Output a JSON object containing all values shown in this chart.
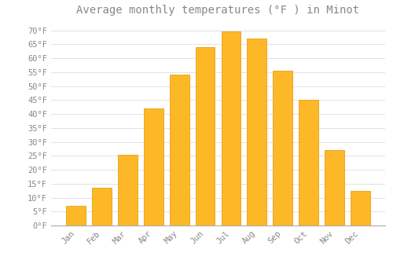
{
  "title": "Average monthly temperatures (°F ) in Minot",
  "months": [
    "Jan",
    "Feb",
    "Mar",
    "Apr",
    "May",
    "Jun",
    "Jul",
    "Aug",
    "Sep",
    "Oct",
    "Nov",
    "Dec"
  ],
  "values": [
    7,
    13.5,
    25.5,
    42,
    54,
    64,
    69.5,
    67,
    55.5,
    45,
    27,
    12.5
  ],
  "bar_color": "#FDB827",
  "bar_edge_color": "#E8A010",
  "background_color": "#FFFFFF",
  "grid_color": "#DDDDDD",
  "text_color": "#888888",
  "ylim": [
    0,
    73
  ],
  "yticks": [
    0,
    5,
    10,
    15,
    20,
    25,
    30,
    35,
    40,
    45,
    50,
    55,
    60,
    65,
    70
  ],
  "ytick_labels": [
    "0°F",
    "5°F",
    "10°F",
    "15°F",
    "20°F",
    "25°F",
    "30°F",
    "35°F",
    "40°F",
    "45°F",
    "50°F",
    "55°F",
    "60°F",
    "65°F",
    "70°F"
  ],
  "title_fontsize": 10,
  "tick_fontsize": 7.5,
  "font_family": "monospace"
}
